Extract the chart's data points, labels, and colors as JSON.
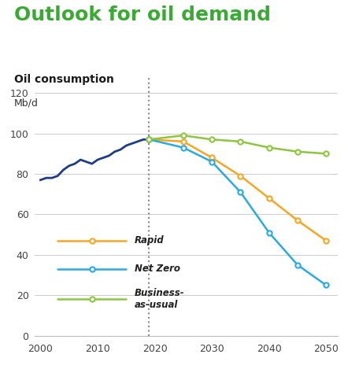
{
  "title": "Outlook for oil demand",
  "subtitle": "Oil consumption",
  "ylabel": "Mb/d",
  "title_color": "#3aaa35",
  "subtitle_color": "#1a1a1a",
  "ylabel_color": "#333333",
  "background_color": "#ffffff",
  "ylim": [
    0,
    128
  ],
  "yticks": [
    0,
    20,
    40,
    60,
    80,
    100,
    120
  ],
  "xlim": [
    1999,
    2052
  ],
  "xticks": [
    2000,
    2010,
    2020,
    2030,
    2040,
    2050
  ],
  "vline_x": 2019,
  "history_x": [
    2000,
    2001,
    2002,
    2003,
    2004,
    2005,
    2006,
    2007,
    2008,
    2009,
    2010,
    2011,
    2012,
    2013,
    2014,
    2015,
    2016,
    2017,
    2018,
    2019
  ],
  "history_y": [
    77,
    78,
    78,
    79,
    82,
    84,
    85,
    87,
    86,
    85,
    87,
    88,
    89,
    91,
    92,
    94,
    95,
    96,
    97,
    97
  ],
  "rapid_x": [
    2019,
    2025,
    2030,
    2035,
    2040,
    2045,
    2050
  ],
  "rapid_y": [
    97,
    96,
    88,
    79,
    68,
    57,
    47
  ],
  "rapid_color": "#F5A623",
  "netzero_x": [
    2019,
    2025,
    2030,
    2035,
    2040,
    2045,
    2050
  ],
  "netzero_y": [
    97,
    93,
    86,
    71,
    51,
    35,
    25
  ],
  "netzero_color": "#29ABE2",
  "bau_x": [
    2019,
    2025,
    2030,
    2035,
    2040,
    2045,
    2050
  ],
  "bau_y": [
    97,
    99,
    97,
    96,
    93,
    91,
    90
  ],
  "bau_color": "#8DC63F",
  "history_color": "#1f3c88",
  "legend_labels": [
    "Rapid",
    "Net Zero",
    "Business-\nas-usual"
  ],
  "legend_colors": [
    "#F5A623",
    "#29ABE2",
    "#8DC63F"
  ],
  "title_fontsize": 18,
  "subtitle_fontsize": 10,
  "axis_label_fontsize": 9,
  "tick_fontsize": 9,
  "legend_fontsize": 8.5
}
